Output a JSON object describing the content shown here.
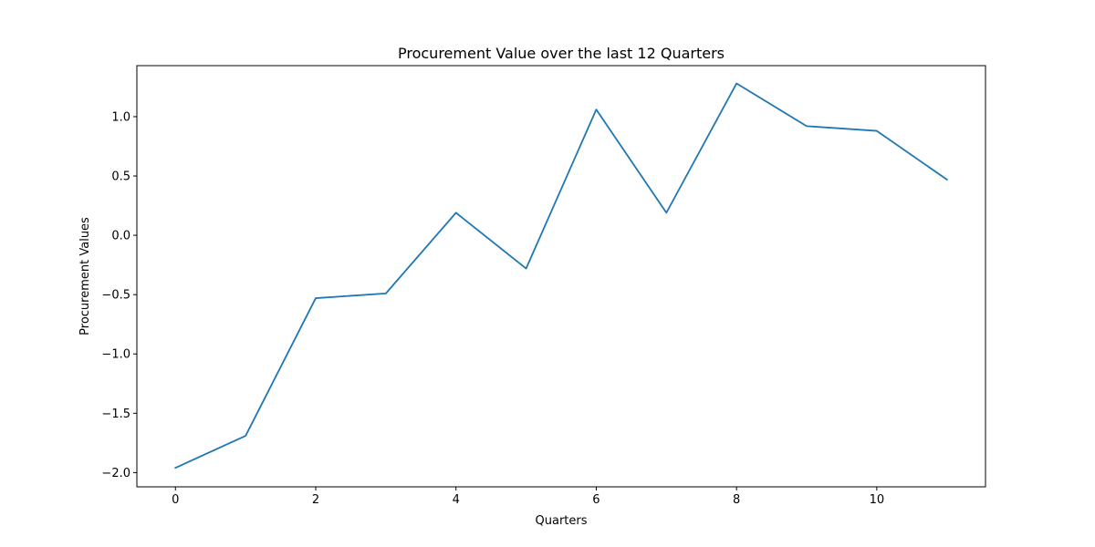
{
  "chart_data": {
    "type": "line",
    "title": "Procurement Value over the last 12 Quarters",
    "xlabel": "Quarters",
    "ylabel": "Procurement Values",
    "x": [
      0,
      1,
      2,
      3,
      4,
      5,
      6,
      7,
      8,
      9,
      10,
      11
    ],
    "series": [
      {
        "values": [
          -1.96,
          -1.69,
          -0.53,
          -0.49,
          0.19,
          -0.28,
          1.06,
          0.19,
          1.28,
          0.92,
          0.88,
          0.47
        ],
        "color": "#1f77b4"
      }
    ],
    "xlim": [
      -0.55,
      11.55
    ],
    "ylim": [
      -2.12,
      1.43
    ],
    "xticks": [
      0,
      2,
      4,
      6,
      8,
      10
    ],
    "xtick_labels": [
      "0",
      "2",
      "4",
      "6",
      "8",
      "10"
    ],
    "yticks": [
      -2.0,
      -1.5,
      -1.0,
      -0.5,
      0.0,
      0.5,
      1.0
    ],
    "ytick_labels": [
      "−2.0",
      "−1.5",
      "−1.0",
      "−0.5",
      "0.0",
      "0.5",
      "1.0"
    ],
    "grid": false,
    "legend": "none"
  }
}
